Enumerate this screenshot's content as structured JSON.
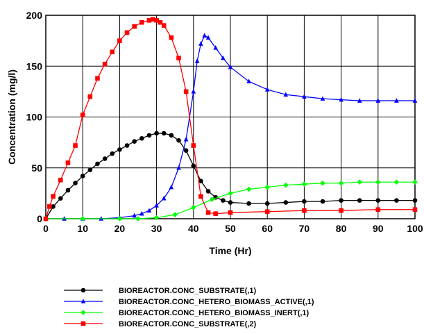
{
  "chart_data": {
    "type": "line",
    "title": "",
    "xlabel": "Time (Hr)",
    "ylabel": "Concentration (mg/l)",
    "xlim": [
      0,
      100
    ],
    "ylim": [
      0,
      200
    ],
    "xticks": [
      0,
      10,
      20,
      30,
      40,
      50,
      60,
      70,
      80,
      90,
      100
    ],
    "yticks": [
      0,
      50,
      100,
      150,
      200
    ],
    "grid": true,
    "legend_position": "bottom",
    "series": [
      {
        "name": "BIOREACTOR.CONC_SUBSTRATE(,1)",
        "color": "#000000",
        "marker": "circle",
        "x": [
          0,
          2,
          4,
          6,
          8,
          10,
          12,
          14,
          16,
          18,
          20,
          22,
          24,
          26,
          28,
          30,
          32,
          34,
          36,
          38,
          40,
          42,
          44,
          46,
          48,
          50,
          55,
          60,
          65,
          70,
          75,
          80,
          85,
          90,
          95,
          100
        ],
        "y": [
          0,
          12,
          20,
          28,
          35,
          42,
          48,
          54,
          59,
          64,
          68,
          72,
          76,
          79,
          82,
          84,
          84,
          82,
          77,
          67,
          52,
          37,
          27,
          21,
          18,
          16,
          15,
          15,
          16,
          17,
          17,
          18,
          18,
          18,
          18,
          18
        ]
      },
      {
        "name": "BIOREACTOR.CONC_HETERO_BIOMASS_ACTIVE(,1)",
        "color": "#0000ff",
        "marker": "triangle",
        "x": [
          0,
          5,
          10,
          15,
          20,
          24,
          26,
          28,
          30,
          32,
          34,
          36,
          38,
          40,
          41,
          42,
          43,
          44,
          46,
          48,
          50,
          55,
          60,
          65,
          70,
          75,
          80,
          85,
          90,
          95,
          100
        ],
        "y": [
          0,
          0,
          0,
          0,
          1,
          3,
          5,
          8,
          13,
          20,
          31,
          50,
          78,
          125,
          155,
          172,
          180,
          178,
          168,
          158,
          149,
          135,
          127,
          122,
          120,
          118,
          117,
          116,
          116,
          116,
          116
        ]
      },
      {
        "name": "BIOREACTOR.CONC_HETERO_BIOMASS_INERT(,1)",
        "color": "#00ff00",
        "marker": "diamond",
        "x": [
          0,
          10,
          20,
          25,
          30,
          35,
          40,
          45,
          50,
          55,
          60,
          65,
          70,
          75,
          80,
          85,
          90,
          95,
          100
        ],
        "y": [
          0,
          0,
          0,
          0,
          1,
          4,
          11,
          19,
          25,
          29,
          31,
          33,
          34,
          35,
          35,
          36,
          36,
          36,
          36
        ]
      },
      {
        "name": "BIOREACTOR.CONC_SUBSTRATE(,2)",
        "color": "#ff0000",
        "marker": "square",
        "x": [
          0,
          1,
          2,
          4,
          6,
          8,
          10,
          12,
          14,
          16,
          18,
          20,
          22,
          24,
          26,
          28,
          29,
          30,
          31,
          32,
          34,
          36,
          38,
          40,
          42,
          44,
          46,
          50,
          60,
          70,
          80,
          90,
          100
        ],
        "y": [
          0,
          12,
          22,
          38,
          55,
          72,
          102,
          120,
          138,
          152,
          164,
          175,
          183,
          189,
          193,
          195,
          196,
          195,
          193,
          190,
          178,
          158,
          125,
          72,
          22,
          6,
          5,
          6,
          7,
          8,
          8,
          9,
          9
        ]
      }
    ]
  }
}
